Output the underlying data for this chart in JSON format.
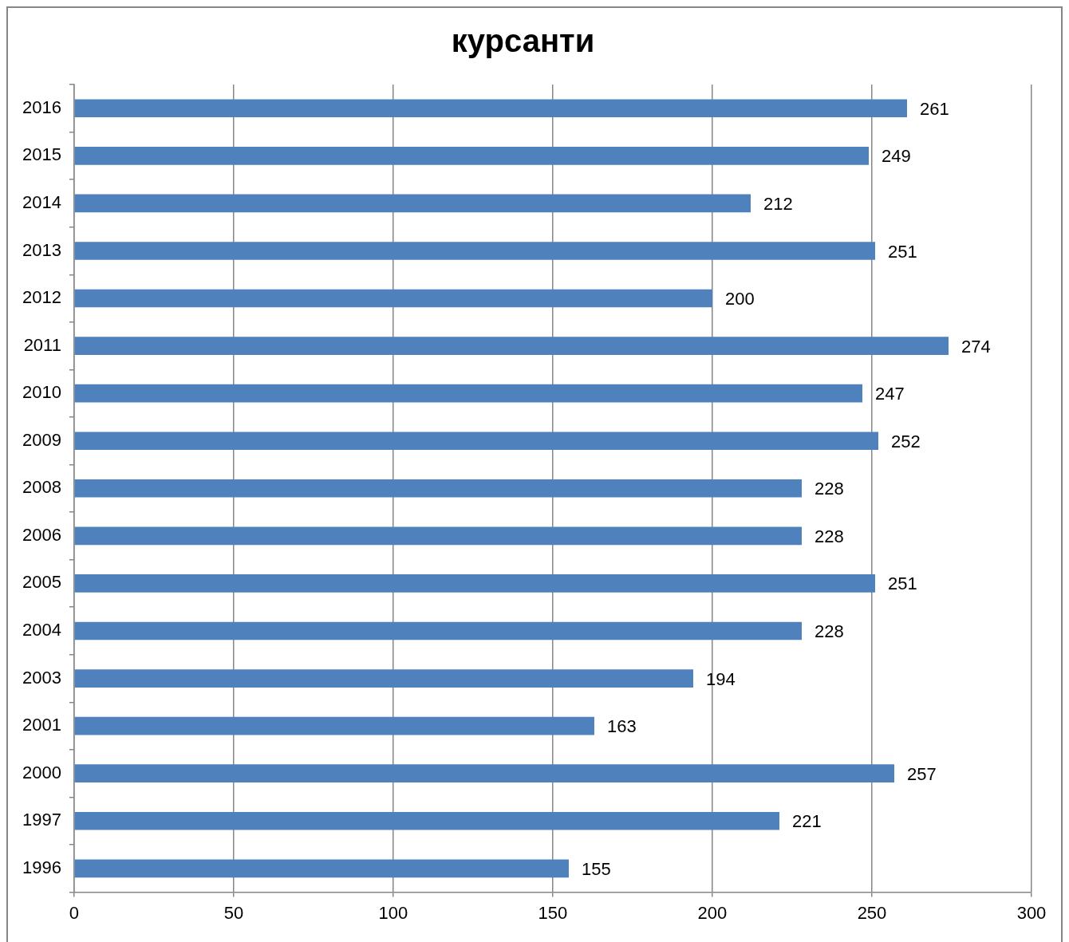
{
  "chart_data": {
    "type": "bar",
    "orientation": "horizontal",
    "title": "курсанти",
    "categories": [
      "2016",
      "2015",
      "2014",
      "2013",
      "2012",
      "2011",
      "2010",
      "2009",
      "2008",
      "2006",
      "2005",
      "2004",
      "2003",
      "2001",
      "2000",
      "1997",
      "1996"
    ],
    "values": [
      261,
      249,
      212,
      251,
      200,
      274,
      247,
      252,
      228,
      228,
      251,
      228,
      194,
      163,
      257,
      221,
      155
    ],
    "color": "#4f81bd",
    "xlim": [
      0,
      300
    ],
    "xticks": [
      0,
      50,
      100,
      150,
      200,
      250,
      300
    ],
    "grid": "x",
    "data_labels": true,
    "legend": false
  }
}
